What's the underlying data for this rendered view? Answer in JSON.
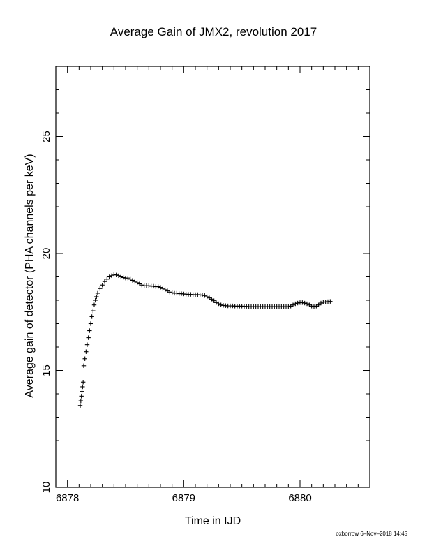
{
  "chart_data": {
    "type": "scatter",
    "title": "Average Gain of JMX2, revolution 2017",
    "xlabel": "Time in IJD",
    "ylabel": "Average gain of detector (PHA channels per keV)",
    "xlim": [
      6877.9,
      6880.6
    ],
    "ylim": [
      10,
      28
    ],
    "x_ticks": [
      6878,
      6879,
      6880
    ],
    "x_tick_labels": [
      "6878",
      "6879",
      "6880"
    ],
    "y_ticks": [
      10,
      15,
      20,
      25
    ],
    "y_tick_labels": [
      "10",
      "15",
      "20",
      "25"
    ],
    "grid": false,
    "marker": "+",
    "series": [
      {
        "x": [
          6878.11,
          6878.115,
          6878.12,
          6878.125,
          6878.13,
          6878.135,
          6878.14,
          6878.15,
          6878.16,
          6878.17,
          6878.18,
          6878.19,
          6878.2,
          6878.21,
          6878.22,
          6878.23,
          6878.24,
          6878.25,
          6878.26,
          6878.28,
          6878.3,
          6878.32,
          6878.34,
          6878.36,
          6878.38,
          6878.4,
          6878.42,
          6878.44,
          6878.46,
          6878.48,
          6878.5,
          6878.52,
          6878.54,
          6878.56,
          6878.58,
          6878.6,
          6878.62,
          6878.64,
          6878.66,
          6878.68,
          6878.7,
          6878.72,
          6878.74,
          6878.76,
          6878.78,
          6878.8,
          6878.82,
          6878.84,
          6878.86,
          6878.88,
          6878.9,
          6878.92,
          6878.94,
          6878.96,
          6878.98,
          6879.0,
          6879.02,
          6879.04,
          6879.06,
          6879.08,
          6879.1,
          6879.12,
          6879.14,
          6879.16,
          6879.18,
          6879.2,
          6879.22,
          6879.24,
          6879.26,
          6879.28,
          6879.3,
          6879.32,
          6879.34,
          6879.36,
          6879.38,
          6879.4,
          6879.42,
          6879.44,
          6879.46,
          6879.48,
          6879.5,
          6879.52,
          6879.54,
          6879.56,
          6879.58,
          6879.6,
          6879.62,
          6879.64,
          6879.66,
          6879.68,
          6879.7,
          6879.72,
          6879.74,
          6879.76,
          6879.78,
          6879.8,
          6879.82,
          6879.84,
          6879.86,
          6879.88,
          6879.9,
          6879.92,
          6879.94,
          6879.96,
          6879.98,
          6880.0,
          6880.02,
          6880.04,
          6880.06,
          6880.08,
          6880.1,
          6880.12,
          6880.14,
          6880.16,
          6880.18,
          6880.2,
          6880.22,
          6880.24,
          6880.26
        ],
        "y": [
          13.5,
          13.7,
          13.9,
          14.1,
          14.3,
          14.5,
          15.2,
          15.5,
          15.8,
          16.1,
          16.4,
          16.7,
          17.0,
          17.3,
          17.55,
          17.8,
          18.0,
          18.15,
          18.3,
          18.5,
          18.65,
          18.8,
          18.9,
          19.0,
          19.05,
          19.1,
          19.08,
          19.05,
          19.0,
          18.97,
          18.95,
          18.95,
          18.9,
          18.85,
          18.8,
          18.75,
          18.7,
          18.65,
          18.62,
          18.62,
          18.62,
          18.6,
          18.6,
          18.58,
          18.58,
          18.55,
          18.5,
          18.45,
          18.4,
          18.35,
          18.32,
          18.3,
          18.3,
          18.28,
          18.28,
          18.27,
          18.26,
          18.25,
          18.25,
          18.24,
          18.24,
          18.24,
          18.23,
          18.22,
          18.2,
          18.15,
          18.1,
          18.05,
          17.98,
          17.9,
          17.85,
          17.8,
          17.78,
          17.77,
          17.76,
          17.76,
          17.76,
          17.75,
          17.75,
          17.75,
          17.75,
          17.74,
          17.74,
          17.73,
          17.73,
          17.73,
          17.73,
          17.73,
          17.73,
          17.73,
          17.73,
          17.73,
          17.73,
          17.73,
          17.73,
          17.73,
          17.73,
          17.73,
          17.73,
          17.73,
          17.73,
          17.75,
          17.8,
          17.85,
          17.88,
          17.9,
          17.9,
          17.88,
          17.85,
          17.8,
          17.75,
          17.73,
          17.75,
          17.8,
          17.88,
          17.92,
          17.93,
          17.94,
          17.95
        ]
      }
    ]
  },
  "footer": "oxborrow  6–Nov–2018 14:45"
}
